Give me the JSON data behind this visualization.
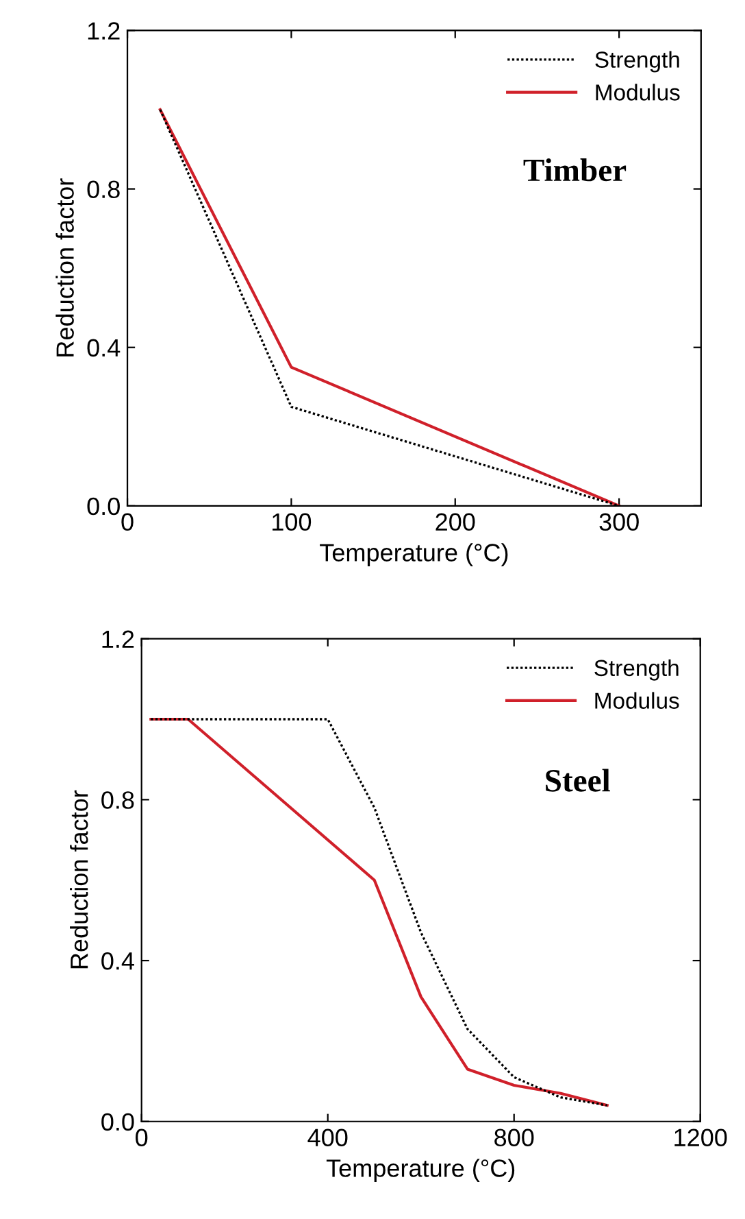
{
  "chart_data": [
    {
      "type": "line",
      "xlabel": "Temperature (°C)",
      "ylabel": "Reduction factor",
      "annotations": [
        "Timber"
      ],
      "xlim": [
        0,
        350
      ],
      "xticks": [
        0,
        100,
        200,
        300
      ],
      "ylim": [
        0,
        1.2
      ],
      "yticks": [
        {
          "value": 0,
          "label": "0.0"
        },
        0.4,
        0.8,
        1.2
      ],
      "legend": "top right",
      "grid": false,
      "series": [
        {
          "name": "Strength",
          "color": "#000000",
          "line_style": "dotted",
          "x": [
            20,
            100,
            300
          ],
          "values": [
            1.0,
            0.25,
            0.0
          ]
        },
        {
          "name": "Modulus",
          "color": "#d0202a",
          "line_style": "solid",
          "x": [
            20,
            100,
            300
          ],
          "values": [
            1.0,
            0.35,
            0.0
          ]
        }
      ]
    },
    {
      "type": "line",
      "xlabel": "Temperature (°C)",
      "ylabel": "Reduction factor",
      "annotations": [
        "Steel"
      ],
      "xlim": [
        0,
        1200
      ],
      "xticks": [
        0,
        400,
        800,
        1200
      ],
      "ylim": [
        0,
        1.2
      ],
      "yticks": [
        {
          "value": 0,
          "label": "0.0"
        },
        0.4,
        0.8,
        1.2
      ],
      "legend": "top right",
      "grid": false,
      "series": [
        {
          "name": "Strength",
          "color": "#000000",
          "line_style": "dotted",
          "x": [
            20,
            400,
            500,
            600,
            700,
            800,
            900,
            1000
          ],
          "values": [
            1.0,
            1.0,
            0.78,
            0.47,
            0.23,
            0.11,
            0.06,
            0.04
          ]
        },
        {
          "name": "Modulus",
          "color": "#d0202a",
          "line_style": "solid",
          "x": [
            20,
            100,
            500,
            600,
            700,
            800,
            900,
            1000
          ],
          "values": [
            1.0,
            1.0,
            0.6,
            0.31,
            0.13,
            0.09,
            0.07,
            0.04
          ]
        }
      ]
    }
  ]
}
